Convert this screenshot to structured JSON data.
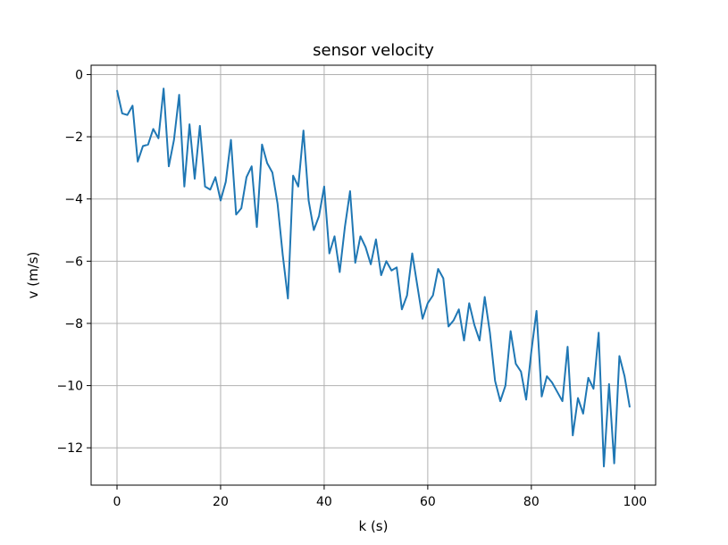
{
  "chart_data": {
    "type": "line",
    "title": "sensor velocity",
    "xlabel": "k (s)",
    "ylabel": "v (m/s)",
    "xlim": [
      -5,
      104
    ],
    "ylim": [
      -13.2,
      0.3
    ],
    "grid": true,
    "xticks": [
      0,
      20,
      40,
      60,
      80,
      100
    ],
    "xtick_labels": [
      "0",
      "20",
      "40",
      "60",
      "80",
      "100"
    ],
    "yticks": [
      0,
      -2,
      -4,
      -6,
      -8,
      -10,
      -12
    ],
    "ytick_labels": [
      "0",
      "−2",
      "−4",
      "−6",
      "−8",
      "−10",
      "−12"
    ],
    "series": [
      {
        "color": "#1f77b4",
        "x": [
          0,
          1,
          2,
          3,
          4,
          5,
          6,
          7,
          8,
          9,
          10,
          11,
          12,
          13,
          14,
          15,
          16,
          17,
          18,
          19,
          20,
          21,
          22,
          23,
          24,
          25,
          26,
          27,
          28,
          29,
          30,
          31,
          32,
          33,
          34,
          35,
          36,
          37,
          38,
          39,
          40,
          41,
          42,
          43,
          44,
          45,
          46,
          47,
          48,
          49,
          50,
          51,
          52,
          53,
          54,
          55,
          56,
          57,
          58,
          59,
          60,
          61,
          62,
          63,
          64,
          65,
          66,
          67,
          68,
          69,
          70,
          71,
          72,
          73,
          74,
          75,
          76,
          77,
          78,
          79,
          80,
          81,
          82,
          83,
          84,
          85,
          86,
          87,
          88,
          89,
          90,
          91,
          92,
          93,
          94,
          95,
          96,
          97,
          98,
          99
        ],
        "y": [
          -0.5,
          -1.25,
          -1.3,
          -1.0,
          -2.8,
          -2.3,
          -2.25,
          -1.75,
          -2.05,
          -0.45,
          -2.95,
          -2.1,
          -0.65,
          -3.6,
          -1.6,
          -3.35,
          -1.65,
          -3.6,
          -3.7,
          -3.3,
          -4.05,
          -3.45,
          -2.1,
          -4.5,
          -4.3,
          -3.3,
          -2.95,
          -4.9,
          -2.25,
          -2.85,
          -3.15,
          -4.15,
          -5.8,
          -7.2,
          -3.25,
          -3.6,
          -1.8,
          -4.05,
          -5.0,
          -4.55,
          -3.6,
          -5.75,
          -5.2,
          -6.35,
          -4.9,
          -3.75,
          -6.05,
          -5.2,
          -5.55,
          -6.1,
          -5.3,
          -6.45,
          -6.0,
          -6.3,
          -6.2,
          -7.55,
          -7.1,
          -5.75,
          -6.8,
          -7.85,
          -7.35,
          -7.1,
          -6.25,
          -6.55,
          -8.1,
          -7.9,
          -7.55,
          -8.55,
          -7.35,
          -8.05,
          -8.55,
          -7.15,
          -8.3,
          -9.85,
          -10.5,
          -10.0,
          -8.25,
          -9.3,
          -9.55,
          -10.45,
          -8.9,
          -7.6,
          -10.35,
          -9.7,
          -9.9,
          -10.2,
          -10.5,
          -8.75,
          -11.6,
          -10.4,
          -10.9,
          -9.75,
          -10.1,
          -8.3,
          -12.6,
          -9.95,
          -12.5,
          -9.05,
          -9.7,
          -10.7
        ]
      }
    ]
  }
}
